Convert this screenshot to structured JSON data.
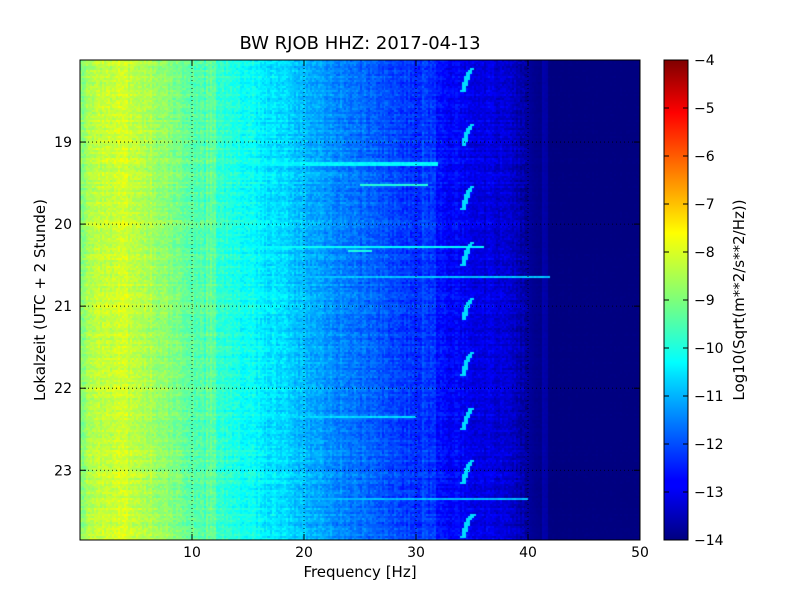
{
  "chart_data": {
    "type": "heatmap",
    "title": "BW RJOB HHZ: 2017-04-13",
    "xlabel": "Frequency [Hz]",
    "ylabel": "Lokalzeit (UTC + 2 Stunde)",
    "colorbar_label": "Log10(Sqrt(m**2/s**2/Hz))",
    "xlim": [
      0,
      50
    ],
    "ylim": [
      18.0,
      23.85
    ],
    "y_inverted": true,
    "x_ticks": [
      10,
      20,
      30,
      40,
      50
    ],
    "x_tick_labels": [
      "10",
      "20",
      "30",
      "40",
      "50"
    ],
    "y_ticks": [
      19,
      20,
      21,
      22,
      23
    ],
    "y_tick_labels": [
      "19",
      "20",
      "21",
      "22",
      "23"
    ],
    "grid": true,
    "colormap": "jet",
    "clim": [
      -14,
      -4
    ],
    "colorbar_ticks": [
      -14,
      -13,
      -12,
      -11,
      -10,
      -9,
      -8,
      -7,
      -6,
      -5,
      -4
    ],
    "colorbar_tick_labels": [
      "−14",
      "−13",
      "−12",
      "−11",
      "−10",
      "−9",
      "−8",
      "−7",
      "−6",
      "−5",
      "−4"
    ],
    "spectrum_profile": {
      "frequency_hz": [
        0,
        2,
        4,
        6,
        8,
        10,
        12,
        14,
        16,
        18,
        20,
        22,
        24,
        26,
        28,
        30,
        32,
        34,
        36,
        38,
        39,
        40,
        41,
        42,
        50
      ],
      "log10_amplitude": [
        -8.9,
        -8.3,
        -8.2,
        -8.5,
        -8.9,
        -9.3,
        -9.7,
        -10.0,
        -10.3,
        -10.6,
        -10.9,
        -11.2,
        -11.5,
        -11.8,
        -12.0,
        -12.3,
        -12.6,
        -12.8,
        -13.0,
        -13.2,
        -13.4,
        -13.7,
        -13.9,
        -14.0,
        -14.0
      ]
    },
    "narrowband_lines_hz": [
      11.5,
      12.0,
      30.8,
      31.5,
      41.5
    ],
    "recurring_feature": {
      "frequency_hz": 34.5,
      "start_times_hours": [
        18.1,
        18.78,
        19.54,
        20.22,
        20.9,
        21.56,
        22.23,
        22.88,
        23.54
      ],
      "log10_amplitude": -10.6
    },
    "transient_events": [
      {
        "time_hours": 19.27,
        "freq_range_hz": [
          15,
          32
        ],
        "log10_amplitude": -10.3
      },
      {
        "time_hours": 19.52,
        "freq_range_hz": [
          25,
          31
        ],
        "log10_amplitude": -9.9
      },
      {
        "time_hours": 20.28,
        "freq_range_hz": [
          15,
          36
        ],
        "log10_amplitude": -10.2
      },
      {
        "time_hours": 20.33,
        "freq_range_hz": [
          24,
          26
        ],
        "log10_amplitude": -10.0
      },
      {
        "time_hours": 20.65,
        "freq_range_hz": [
          15,
          42
        ],
        "log10_amplitude": -10.8
      },
      {
        "time_hours": 22.35,
        "freq_range_hz": [
          15,
          30
        ],
        "log10_amplitude": -10.6
      },
      {
        "time_hours": 23.35,
        "freq_range_hz": [
          15,
          40
        ],
        "log10_amplitude": -10.9
      }
    ]
  }
}
